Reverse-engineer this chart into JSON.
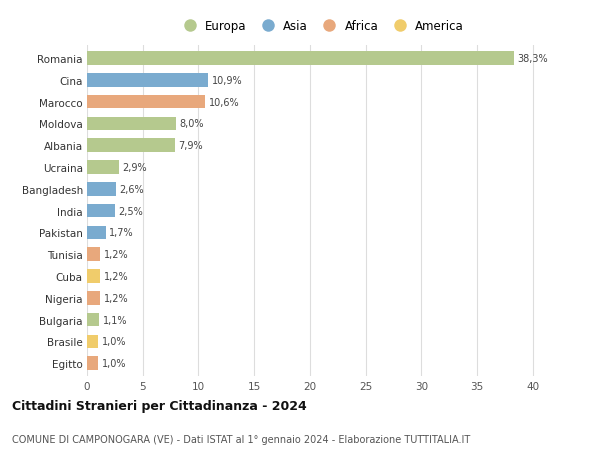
{
  "countries": [
    "Romania",
    "Cina",
    "Marocco",
    "Moldova",
    "Albania",
    "Ucraina",
    "Bangladesh",
    "India",
    "Pakistan",
    "Tunisia",
    "Cuba",
    "Nigeria",
    "Bulgaria",
    "Brasile",
    "Egitto"
  ],
  "values": [
    38.3,
    10.9,
    10.6,
    8.0,
    7.9,
    2.9,
    2.6,
    2.5,
    1.7,
    1.2,
    1.2,
    1.2,
    1.1,
    1.0,
    1.0
  ],
  "labels": [
    "38,3%",
    "10,9%",
    "10,6%",
    "8,0%",
    "7,9%",
    "2,9%",
    "2,6%",
    "2,5%",
    "1,7%",
    "1,2%",
    "1,2%",
    "1,2%",
    "1,1%",
    "1,0%",
    "1,0%"
  ],
  "continents": [
    "Europa",
    "Asia",
    "Africa",
    "Europa",
    "Europa",
    "Europa",
    "Asia",
    "Asia",
    "Asia",
    "Africa",
    "America",
    "Africa",
    "Europa",
    "America",
    "Africa"
  ],
  "colors": {
    "Europa": "#b5c98e",
    "Asia": "#7aabcf",
    "Africa": "#e8a87c",
    "America": "#f0cc6b"
  },
  "legend_order": [
    "Europa",
    "Asia",
    "Africa",
    "America"
  ],
  "title": "Cittadini Stranieri per Cittadinanza - 2024",
  "subtitle": "COMUNE DI CAMPONOGARA (VE) - Dati ISTAT al 1° gennaio 2024 - Elaborazione TUTTITALIA.IT",
  "xlim": [
    0,
    42
  ],
  "xticks": [
    0,
    5,
    10,
    15,
    20,
    25,
    30,
    35,
    40
  ],
  "bg_color": "#ffffff",
  "grid_color": "#dddddd"
}
